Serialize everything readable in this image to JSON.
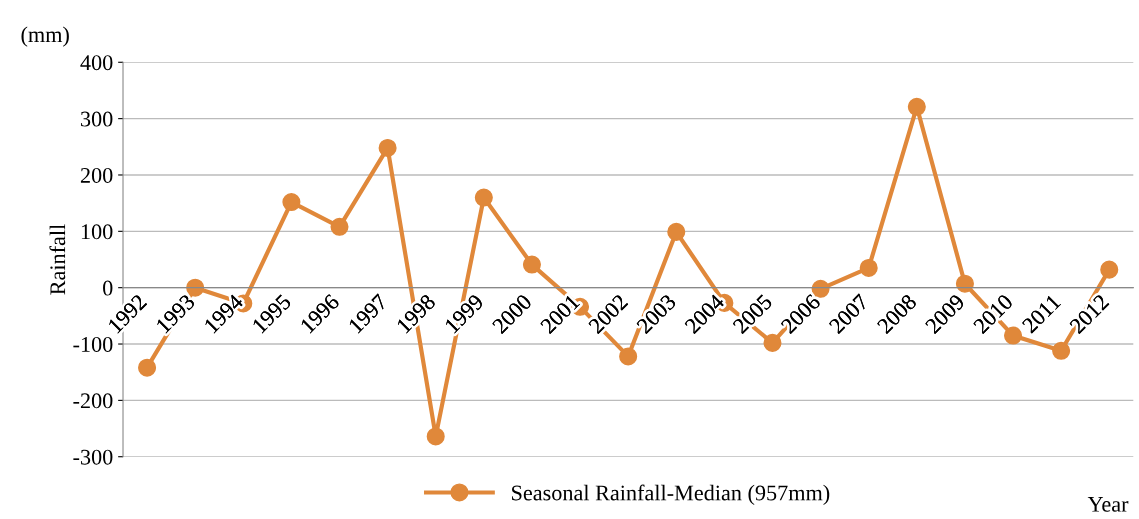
{
  "chart_data": {
    "type": "line",
    "categories": [
      "1992",
      "1993",
      "1994",
      "1995",
      "1996",
      "1997",
      "1998",
      "1999",
      "2000",
      "2001",
      "2002",
      "2003",
      "2004",
      "2005",
      "2006",
      "2007",
      "2008",
      "2009",
      "2010",
      "2011",
      "2012"
    ],
    "series": [
      {
        "name": "Seasonal Rainfall-Median (957mm)",
        "color": "#e0883a",
        "values": [
          -142,
          0,
          -28,
          152,
          108,
          248,
          -264,
          160,
          41,
          -34,
          -122,
          99,
          -27,
          -98,
          -2,
          35,
          321,
          7,
          -85,
          -112,
          32
        ]
      }
    ],
    "ylabel": "Rainfall",
    "xlabel": "Year",
    "annotations": [
      "(mm)"
    ],
    "ylim": [
      -300,
      400
    ],
    "yticks": [
      -300,
      -200,
      -100,
      0,
      100,
      200,
      300,
      400
    ],
    "grid": "y",
    "legend": "bottom",
    "marker": "circle",
    "line_style": "solid"
  }
}
